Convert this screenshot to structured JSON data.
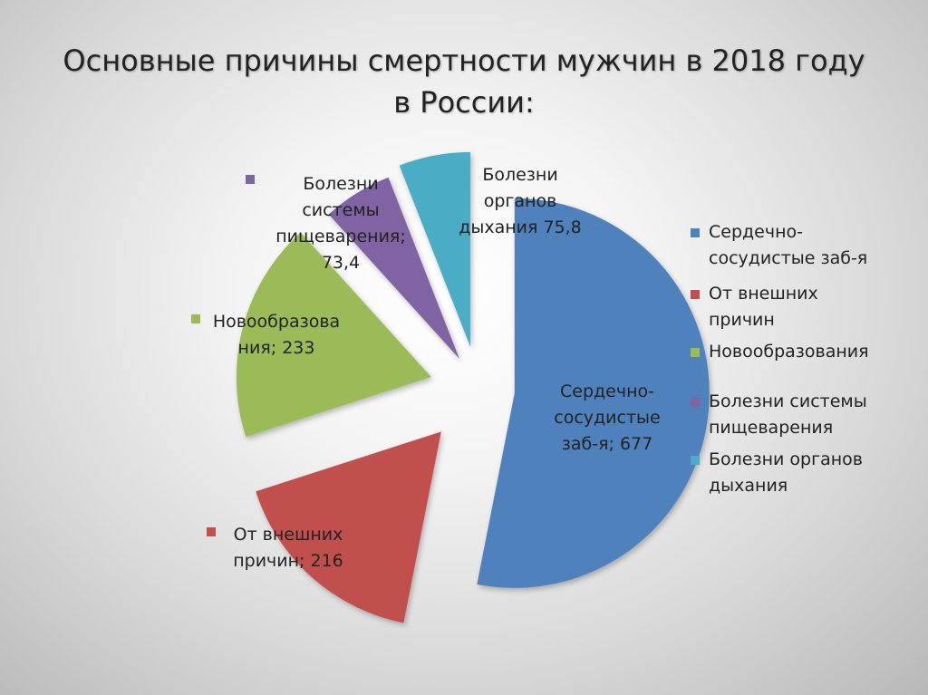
{
  "title_lines": [
    "Основные причины смертности мужчин в 2018 году",
    "в России:"
  ],
  "chart_data": {
    "type": "pie",
    "title": "Основные причины смертности мужчин в 2018 году в России:",
    "categories": [
      "Сердечно-сосудистые заб-я",
      "От внешних причин",
      "Новообразования",
      "Болезни системы пищеварения",
      "Болезни органов дыхания"
    ],
    "values": [
      677,
      216,
      233,
      73.4,
      75.8
    ],
    "colors": [
      "#4f81bd",
      "#c0504d",
      "#9bbb59",
      "#8064a2",
      "#4bacc6"
    ],
    "data_labels": [
      [
        "Сердечно-",
        "сосудистые",
        "заб-я; 677"
      ],
      [
        "От внешних",
        "причин; 216"
      ],
      [
        "Новообразова",
        "ния; 233"
      ],
      [
        "Болезни",
        "системы",
        "пищеварения;",
        "73,4"
      ],
      [
        "Болезни",
        "органов",
        "дыхания 75,8"
      ]
    ],
    "legend_position": "right",
    "legend_entries": [
      [
        "Сердечно-",
        "сосудистые заб-я"
      ],
      [
        "От внешних",
        "причин"
      ],
      [
        "Новообразования"
      ],
      [
        "Болезни системы",
        "пищеварения"
      ],
      [
        "Болезни органов",
        "дыхания"
      ]
    ]
  }
}
